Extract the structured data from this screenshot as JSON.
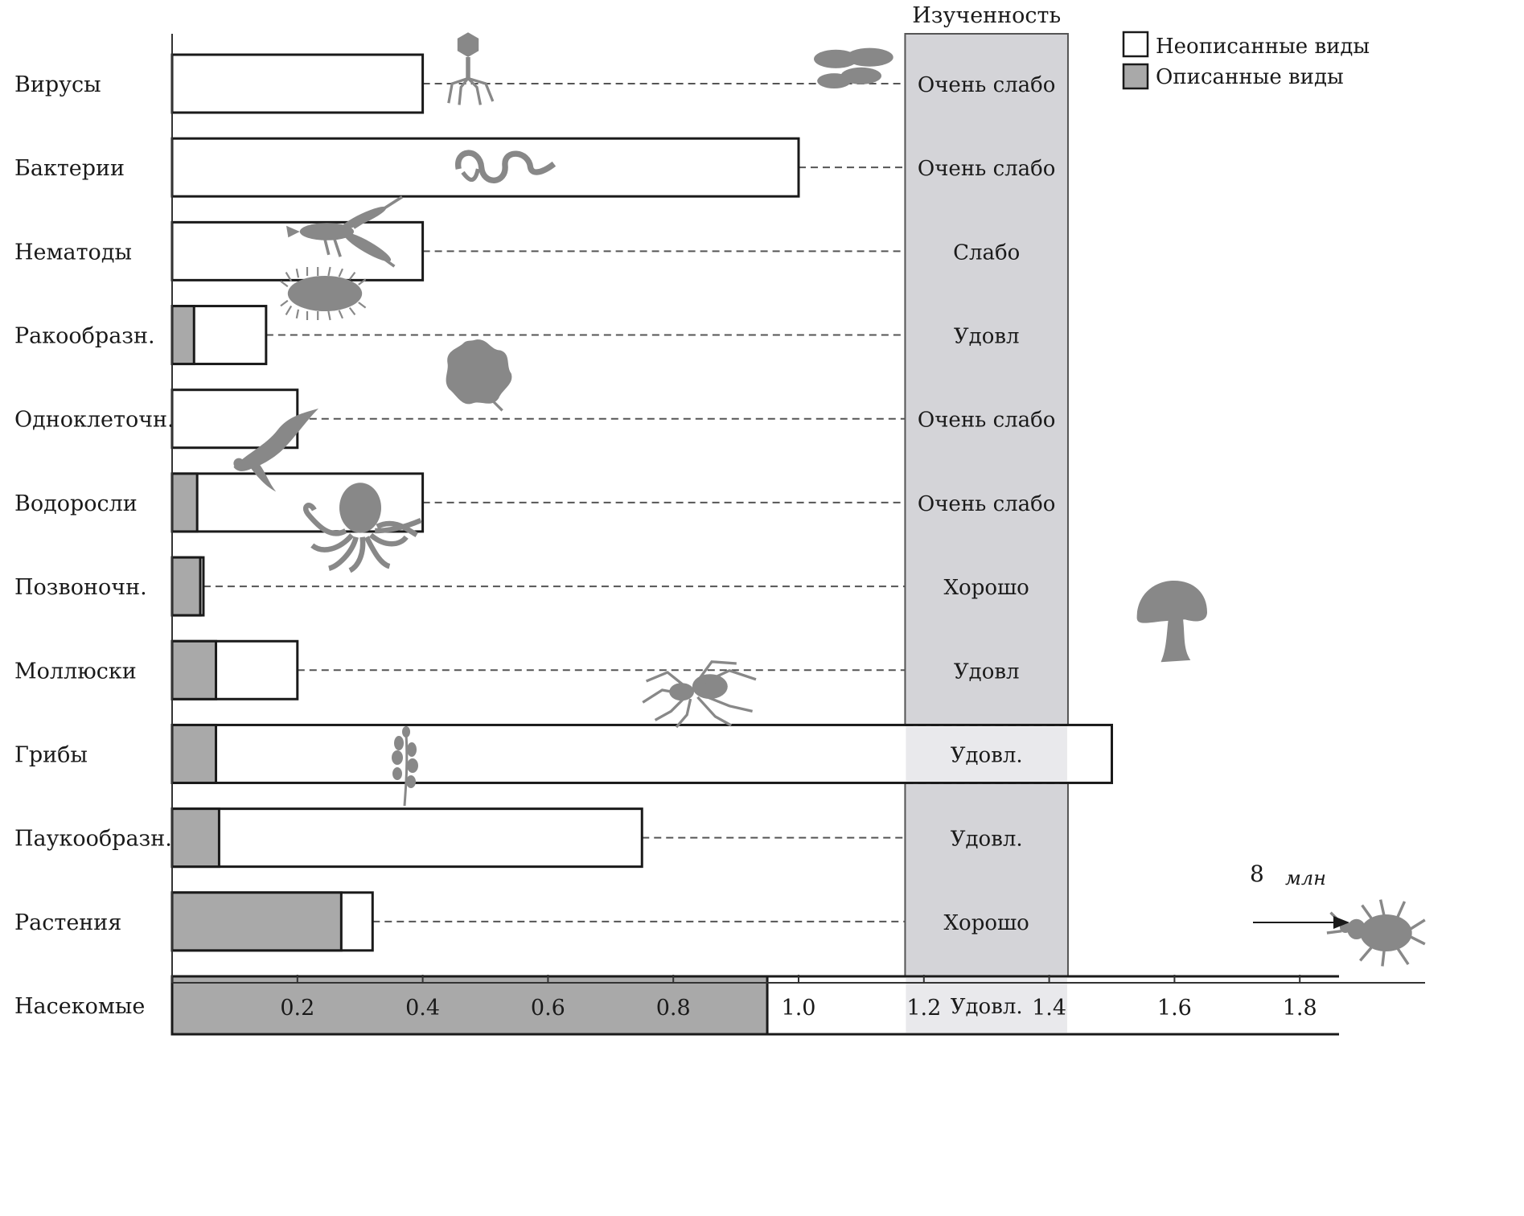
{
  "chart_data": {
    "type": "bar",
    "orientation": "horizontal",
    "stacked": true,
    "band_title": "Изученность",
    "series": [
      {
        "name": "Описанные виды",
        "color": "#a9a9a9",
        "values": [
          0.0,
          0.0,
          0.0,
          0.035,
          0.0,
          0.04,
          0.045,
          0.07,
          0.07,
          0.075,
          0.27,
          0.95
        ]
      },
      {
        "name": "Неописанные виды",
        "color": "#ffffff",
        "values": [
          0.4,
          1.0,
          0.4,
          0.115,
          0.2,
          0.36,
          0.005,
          0.13,
          1.43,
          0.675,
          0.05,
          0.92
        ]
      }
    ],
    "categories": [
      "Вирусы",
      "Бактерии",
      "Нематоды",
      "Ракообразн.",
      "Одноклеточн.",
      "Водоросли",
      "Позвоночн.",
      "Моллюски",
      "Грибы",
      "Паукообразн.",
      "Растения",
      "Насекомые"
    ],
    "study_level": [
      "Очень слабо",
      "Очень слабо",
      "Слабо",
      "Удовл",
      "Очень слабо",
      "Очень слабо",
      "Хорошо",
      "Удовл",
      "Удовл.",
      "Удовл.",
      "Хорошо",
      "Удовл."
    ],
    "organism_icons": [
      "bacteriophage-icon",
      "bacteria-icon",
      "nematode-icon",
      "crayfish-icon",
      "protozoan-icon",
      "alga-icon",
      "bird-icon",
      "octopus-icon",
      "mushroom-icon",
      "spider-icon",
      "plant-sprig-icon",
      "beetle-icon"
    ],
    "x_ticks": [
      "0.2",
      "0.4",
      "0.6",
      "0.8",
      "1.0",
      "1.2",
      "1.4",
      "1.6",
      "1.8"
    ],
    "xlim": [
      0,
      2.0
    ],
    "band_range": [
      1.17,
      1.43
    ],
    "annotation": {
      "value": "8",
      "unit": "млн"
    },
    "grid": false,
    "legend_position": "top-right"
  }
}
